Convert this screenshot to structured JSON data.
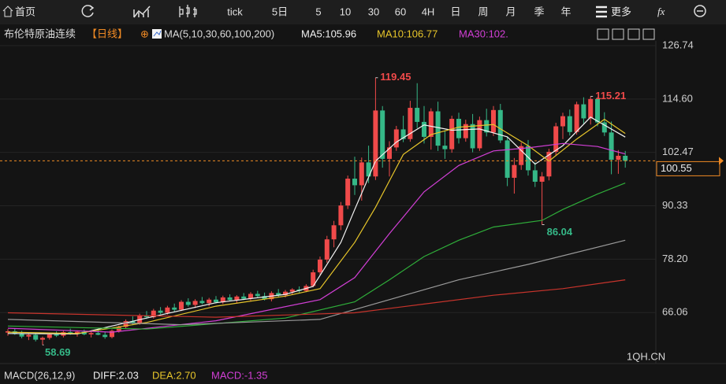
{
  "toolbar": {
    "home": "首页",
    "tabs": [
      "tick",
      "5日",
      "5",
      "10",
      "30",
      "60",
      "4H",
      "日",
      "周",
      "月",
      "季",
      "年"
    ],
    "more": "更多",
    "fx": "fx"
  },
  "header": {
    "symbol": "布伦特原油连续",
    "period": "【日线】",
    "ma_label": "MA(5,10,30,60,100,200)",
    "ma_legend": [
      "MA5:105.96",
      "MA10:106.77",
      "MA30:102."
    ]
  },
  "macd": {
    "label": "MACD(26,12,9)",
    "legend": [
      "DIFF:2.03",
      "DEA:2.70",
      "MACD:-1.35"
    ]
  },
  "watermark": "1QH.CN",
  "chart_data": {
    "type": "candlestick",
    "up_color": "#f04a4a",
    "down_color": "#35b887",
    "ylim": [
      53.93,
      126.74
    ],
    "yticks": [
      126.74,
      {
        "value": 114.6,
        "label": "114.60"
      },
      102.47,
      90.33,
      {
        "value": 78.2,
        "label": "78.20"
      },
      66.06
    ],
    "grid": true,
    "open": [
      61.5,
      61.8,
      61.2,
      60.6,
      61.0,
      59.9,
      60.3,
      61.1,
      60.8,
      61.6,
      61.3,
      61.7,
      61.1,
      61.4,
      61.0,
      60.5,
      61.9,
      62.8,
      64.1,
      63.6,
      65.4,
      65.0,
      66.5,
      66.0,
      67.2,
      66.7,
      68.5,
      67.8,
      68.7,
      68.2,
      69.0,
      68.4,
      69.5,
      68.9,
      69.7,
      69.2,
      70.3,
      69.8,
      69.1,
      70.5,
      70.0,
      70.8,
      71.3,
      71.0,
      72.1,
      75.2,
      78.1,
      82.7,
      85.9,
      90.4,
      96.5,
      95.0,
      100.2,
      97.0,
      112.0,
      101.0,
      103.6,
      107.7,
      105.5,
      112.6,
      109.4,
      106.0,
      111.8,
      104.0,
      103.2,
      110.1,
      105.7,
      108.9,
      103.4,
      109.8,
      107.0,
      112.1,
      105.2,
      96.7,
      99.6,
      103.9,
      98.4,
      95.8,
      97.0,
      102.6,
      108.4,
      110.7,
      107.1,
      113.4,
      110.2,
      114.6,
      109.3,
      107.0,
      100.8,
      101.7
    ],
    "high": [
      62.3,
      62.5,
      61.9,
      61.4,
      61.5,
      60.6,
      61.4,
      61.8,
      61.9,
      62.4,
      62.0,
      62.2,
      61.8,
      62.3,
      61.7,
      62.2,
      63.1,
      64.5,
      65.2,
      65.8,
      66.4,
      66.9,
      67.3,
      67.6,
      68.1,
      68.9,
      69.3,
      69.1,
      69.6,
      69.4,
      69.8,
      69.9,
      70.2,
      70.0,
      70.5,
      70.7,
      71.0,
      70.6,
      70.9,
      71.4,
      71.2,
      71.6,
      72.0,
      72.5,
      75.8,
      78.8,
      83.5,
      86.9,
      91.2,
      97.2,
      101.5,
      101.3,
      104.0,
      119.45,
      113.0,
      105.0,
      108.5,
      110.8,
      114.2,
      118.2,
      113.0,
      112.5,
      114.0,
      107.5,
      110.8,
      111.5,
      109.9,
      111.2,
      110.6,
      112.4,
      113.0,
      113.5,
      106.0,
      101.2,
      104.7,
      105.3,
      100.2,
      98.0,
      103.3,
      109.2,
      111.5,
      112.2,
      114.0,
      115.0,
      115.21,
      115.0,
      111.6,
      109.5,
      103.0,
      102.8
    ],
    "low": [
      60.8,
      61.0,
      60.2,
      59.8,
      59.5,
      58.69,
      59.9,
      60.5,
      60.4,
      61.0,
      60.6,
      60.9,
      60.4,
      60.9,
      60.1,
      60.2,
      61.5,
      62.4,
      63.2,
      63.3,
      64.6,
      64.7,
      65.7,
      65.6,
      66.3,
      66.4,
      67.4,
      67.1,
      67.9,
      67.5,
      68.1,
      68.0,
      68.6,
      68.3,
      68.9,
      68.7,
      69.4,
      68.8,
      68.6,
      69.6,
      69.5,
      70.1,
      70.6,
      70.7,
      71.8,
      74.6,
      77.4,
      80.9,
      84.8,
      89.6,
      92.8,
      91.5,
      95.5,
      96.2,
      99.0,
      97.0,
      102.8,
      104.8,
      104.9,
      108.0,
      104.5,
      103.1,
      102.8,
      101.0,
      102.4,
      104.5,
      104.9,
      102.5,
      102.8,
      106.1,
      106.2,
      104.6,
      94.8,
      93.1,
      98.5,
      97.2,
      94.6,
      86.04,
      96.1,
      101.8,
      105.5,
      106.3,
      106.5,
      109.0,
      108.8,
      108.4,
      106.2,
      97.5,
      97.6,
      99.0
    ],
    "close": [
      61.8,
      61.2,
      60.6,
      61.0,
      59.9,
      60.3,
      61.1,
      60.8,
      61.6,
      61.3,
      61.7,
      61.1,
      61.4,
      61.0,
      60.5,
      61.9,
      62.8,
      64.1,
      63.6,
      65.4,
      65.0,
      66.5,
      66.0,
      67.2,
      66.7,
      68.5,
      67.8,
      68.7,
      68.2,
      69.0,
      68.4,
      69.5,
      68.9,
      69.7,
      69.2,
      70.3,
      69.8,
      69.1,
      70.5,
      70.0,
      70.8,
      71.3,
      71.0,
      72.1,
      75.2,
      78.1,
      82.7,
      85.9,
      90.4,
      96.5,
      95.0,
      100.2,
      97.0,
      112.0,
      101.0,
      103.6,
      107.7,
      105.5,
      112.6,
      109.4,
      106.0,
      111.8,
      104.0,
      103.2,
      110.1,
      105.7,
      108.9,
      103.4,
      109.8,
      107.0,
      112.1,
      105.2,
      96.7,
      99.6,
      103.9,
      98.4,
      95.8,
      97.0,
      102.6,
      108.4,
      110.7,
      107.1,
      113.4,
      110.2,
      114.6,
      109.3,
      107.0,
      100.8,
      101.7,
      100.55
    ],
    "series": [
      {
        "name": "MA5",
        "color": "#f2f2f2",
        "x": [
          0,
          10,
          20,
          30,
          40,
          44,
          48,
          50,
          53,
          56,
          60,
          64,
          68,
          72,
          76,
          80,
          84,
          89
        ],
        "values": [
          61.3,
          61.2,
          64.8,
          68.3,
          70.2,
          72.0,
          82.0,
          89.5,
          100.5,
          104.8,
          108.7,
          107.5,
          107.8,
          106.0,
          99.8,
          104.0,
          110.5,
          105.96
        ]
      },
      {
        "name": "MA10",
        "color": "#e8c62a",
        "x": [
          0,
          10,
          20,
          30,
          40,
          45,
          50,
          53,
          57,
          61,
          65,
          70,
          75,
          78,
          82,
          86,
          89
        ],
        "values": [
          61.6,
          61.3,
          63.8,
          67.5,
          69.8,
          71.5,
          82.0,
          90.0,
          102.0,
          106.5,
          108.2,
          108.8,
          104.0,
          100.5,
          105.5,
          110.0,
          106.77
        ]
      },
      {
        "name": "MA30",
        "color": "#d23fd6",
        "x": [
          0,
          15,
          30,
          45,
          50,
          55,
          60,
          65,
          70,
          75,
          80,
          85,
          89
        ],
        "values": [
          62.5,
          61.6,
          64.2,
          69.0,
          74.0,
          84.0,
          93.5,
          99.5,
          102.8,
          103.5,
          104.5,
          103.8,
          102.1
        ]
      },
      {
        "name": "MA60",
        "color": "#2fae3a",
        "x": [
          0,
          20,
          40,
          50,
          55,
          60,
          65,
          70,
          77,
          80,
          85,
          89
        ],
        "values": [
          63.0,
          62.3,
          64.8,
          68.5,
          73.5,
          78.8,
          82.5,
          85.5,
          87.0,
          89.5,
          93.0,
          95.5
        ]
      },
      {
        "name": "MA100",
        "color": "#9a9a9a",
        "x": [
          0,
          25,
          45,
          55,
          65,
          75,
          89
        ],
        "values": [
          64.5,
          63.3,
          64.5,
          69.0,
          73.5,
          77.0,
          82.5
        ]
      },
      {
        "name": "MA200",
        "color": "#c8342c",
        "x": [
          0,
          30,
          50,
          60,
          70,
          80,
          89
        ],
        "values": [
          66.0,
          65.0,
          66.0,
          68.0,
          70.0,
          71.5,
          73.5
        ]
      }
    ]
  }
}
